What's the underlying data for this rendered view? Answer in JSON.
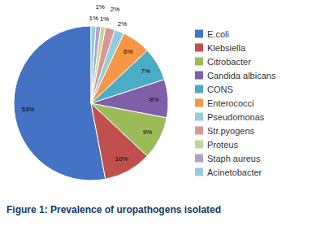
{
  "chart_data": {
    "type": "pie",
    "title": "Figure 1: Prevalence of uropathogens isolated",
    "categories": [
      "E.coli",
      "Klebsiella",
      "Citrobacter",
      "Candida albicans",
      "CONS",
      "Enterococci",
      "Pseudomonas",
      "Str.pyogens",
      "Proteus",
      "Staph aureus",
      "Acinetobacter"
    ],
    "values": [
      53,
      10,
      9,
      8,
      7,
      6,
      2,
      2,
      1,
      1,
      1
    ],
    "value_labels": [
      "53%",
      "10%",
      "9%",
      "8%",
      "7%",
      "6%",
      "2%",
      "2%",
      "1%",
      "1%",
      "1%"
    ],
    "colors": [
      "#4472C4",
      "#C0504D",
      "#9BBB59",
      "#7F5FA8",
      "#4BACC6",
      "#F79646",
      "#92CDDC",
      "#D99694",
      "#C3D69B",
      "#B2A2C7",
      "#93CDDD"
    ],
    "data_labels": true,
    "legend": "right"
  }
}
